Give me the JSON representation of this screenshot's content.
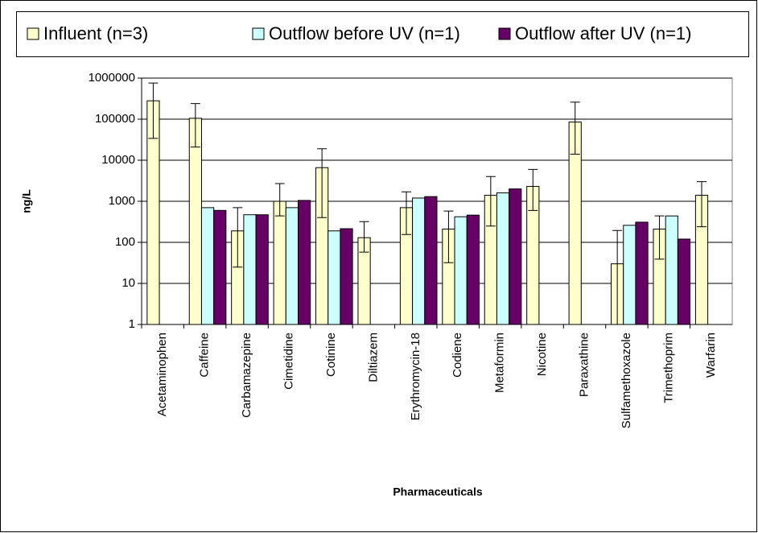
{
  "chart_data": {
    "type": "bar",
    "ylabel": "ng/L",
    "xlabel": "Pharmaceuticals",
    "log_scale": true,
    "grid": true,
    "legend_position": "top",
    "categories": [
      "Acetaminophen",
      "Caffeine",
      "Carbamazepine",
      "Cimetidine",
      "Cotinine",
      "Diltiazem",
      "Erythromycin-18",
      "Codiene",
      "Metaformin",
      "Nicotine",
      "Paraxathine",
      "Sulfamethoxazole",
      "Trimethoprim",
      "Warfarin"
    ],
    "series": [
      {
        "name": "Influent (n=3)",
        "color": "#ffffcc",
        "values": [
          280000,
          105000,
          190,
          1000,
          6600,
          130,
          700,
          210,
          1400,
          2300,
          85000,
          30,
          210,
          1400
        ],
        "err_plus": [
          480000,
          135000,
          510,
          1700,
          12400,
          190,
          1000,
          370,
          2600,
          3700,
          175000,
          165,
          230,
          1600
        ],
        "err_minus": [
          246000,
          84000,
          165,
          560,
          6200,
          72,
          545,
          178,
          1150,
          1700,
          71000,
          29,
          171,
          1160
        ]
      },
      {
        "name": "Outflow before UV (n=1)",
        "color": "#ccffff",
        "values": [
          null,
          700,
          470,
          700,
          190,
          null,
          1200,
          420,
          1600,
          null,
          null,
          260,
          440,
          null
        ]
      },
      {
        "name": "Outflow after UV (n=1)",
        "color": "#660066",
        "values": [
          null,
          600,
          470,
          1050,
          215,
          null,
          1300,
          460,
          2000,
          null,
          null,
          310,
          120,
          null
        ]
      }
    ],
    "ylim": [
      1,
      1000000
    ],
    "yticks": [
      1,
      10,
      100,
      1000,
      10000,
      100000,
      1000000
    ]
  }
}
